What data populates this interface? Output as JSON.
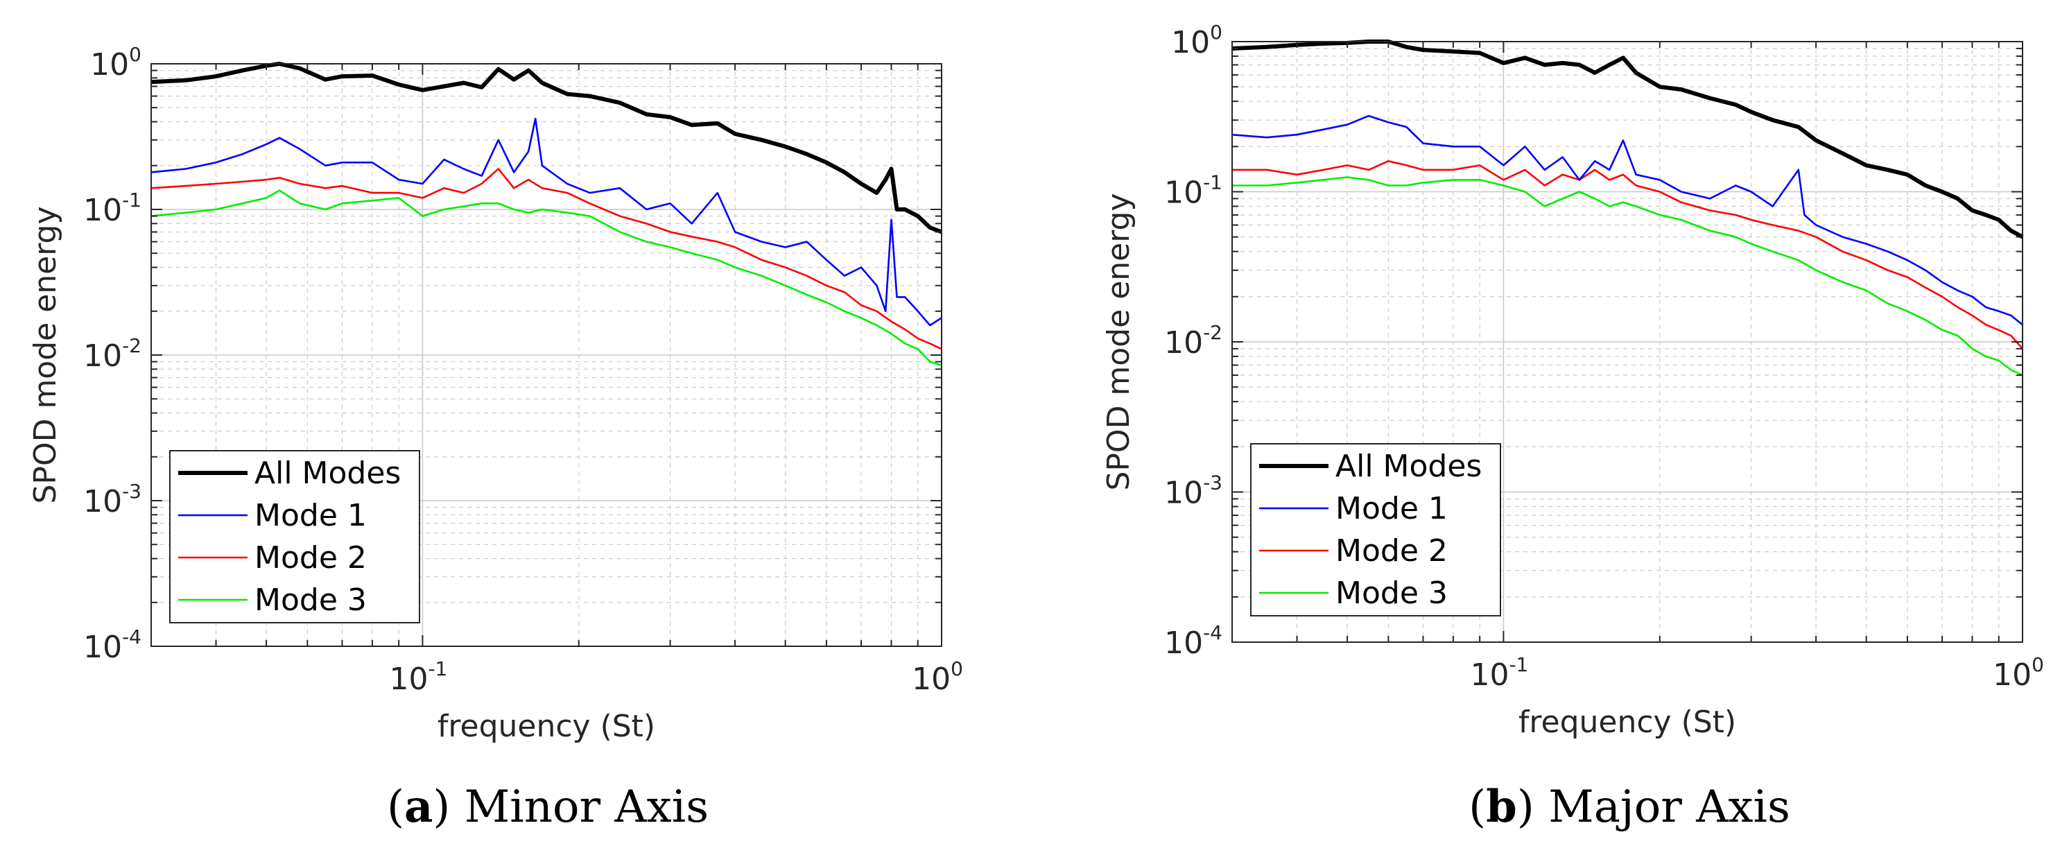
{
  "colors": {
    "all_modes": "#000000",
    "mode1": "#0000ff",
    "mode2": "#ff0000",
    "mode3": "#00ee00",
    "axis": "#262626",
    "grid": "#c8c8c8"
  },
  "chart_data": [
    {
      "type": "line",
      "caption_letter": "a",
      "caption_text": "Minor Axis",
      "xlabel": "frequency (St)",
      "ylabel": "SPOD mode energy",
      "xscale": "log",
      "yscale": "log",
      "xlim": [
        0.03,
        1.0
      ],
      "ylim": [
        0.0001,
        1.0
      ],
      "grid": true,
      "legend_position": "bottom-left",
      "x_ticks": [
        {
          "base": "10",
          "exp": "-1"
        },
        {
          "base": "10",
          "exp": "0"
        }
      ],
      "y_ticks": [
        {
          "base": "10",
          "exp": "0"
        },
        {
          "base": "10",
          "exp": "-1"
        },
        {
          "base": "10",
          "exp": "-2"
        },
        {
          "base": "10",
          "exp": "-3"
        },
        {
          "base": "10",
          "exp": "-4"
        }
      ],
      "series": [
        {
          "name": "All Modes",
          "color_key": "all_modes",
          "x": [
            0.03,
            0.035,
            0.04,
            0.045,
            0.05,
            0.053,
            0.058,
            0.065,
            0.07,
            0.08,
            0.09,
            0.1,
            0.11,
            0.12,
            0.13,
            0.14,
            0.15,
            0.16,
            0.17,
            0.19,
            0.21,
            0.24,
            0.27,
            0.3,
            0.33,
            0.37,
            0.4,
            0.45,
            0.5,
            0.55,
            0.6,
            0.65,
            0.7,
            0.75,
            0.78,
            0.8,
            0.82,
            0.85,
            0.9,
            0.95,
            1.0
          ],
          "values": [
            0.75,
            0.77,
            0.82,
            0.9,
            0.97,
            1.0,
            0.93,
            0.78,
            0.82,
            0.83,
            0.72,
            0.66,
            0.7,
            0.74,
            0.69,
            0.92,
            0.78,
            0.9,
            0.74,
            0.62,
            0.6,
            0.54,
            0.45,
            0.43,
            0.38,
            0.39,
            0.33,
            0.3,
            0.27,
            0.24,
            0.21,
            0.18,
            0.15,
            0.13,
            0.16,
            0.19,
            0.1,
            0.1,
            0.09,
            0.075,
            0.07
          ]
        },
        {
          "name": "Mode 1",
          "color_key": "mode1",
          "x": [
            0.03,
            0.035,
            0.04,
            0.045,
            0.05,
            0.053,
            0.058,
            0.065,
            0.07,
            0.08,
            0.09,
            0.1,
            0.11,
            0.12,
            0.13,
            0.14,
            0.15,
            0.16,
            0.165,
            0.17,
            0.19,
            0.21,
            0.24,
            0.27,
            0.3,
            0.33,
            0.37,
            0.4,
            0.45,
            0.5,
            0.55,
            0.6,
            0.65,
            0.7,
            0.75,
            0.78,
            0.8,
            0.82,
            0.85,
            0.9,
            0.95,
            1.0
          ],
          "values": [
            0.18,
            0.19,
            0.21,
            0.24,
            0.28,
            0.31,
            0.26,
            0.2,
            0.21,
            0.21,
            0.16,
            0.15,
            0.22,
            0.19,
            0.17,
            0.3,
            0.18,
            0.25,
            0.42,
            0.2,
            0.15,
            0.13,
            0.14,
            0.1,
            0.11,
            0.08,
            0.13,
            0.07,
            0.06,
            0.055,
            0.06,
            0.045,
            0.035,
            0.04,
            0.03,
            0.02,
            0.085,
            0.025,
            0.025,
            0.02,
            0.016,
            0.018
          ]
        },
        {
          "name": "Mode 2",
          "color_key": "mode2",
          "x": [
            0.03,
            0.035,
            0.04,
            0.045,
            0.05,
            0.053,
            0.058,
            0.065,
            0.07,
            0.08,
            0.09,
            0.1,
            0.11,
            0.12,
            0.13,
            0.14,
            0.15,
            0.16,
            0.17,
            0.19,
            0.21,
            0.24,
            0.27,
            0.3,
            0.33,
            0.37,
            0.4,
            0.45,
            0.5,
            0.55,
            0.6,
            0.65,
            0.7,
            0.75,
            0.8,
            0.85,
            0.9,
            0.95,
            1.0
          ],
          "values": [
            0.14,
            0.145,
            0.15,
            0.155,
            0.16,
            0.165,
            0.15,
            0.14,
            0.145,
            0.13,
            0.13,
            0.12,
            0.14,
            0.13,
            0.15,
            0.19,
            0.14,
            0.16,
            0.14,
            0.13,
            0.11,
            0.09,
            0.08,
            0.07,
            0.065,
            0.06,
            0.055,
            0.045,
            0.04,
            0.035,
            0.03,
            0.027,
            0.022,
            0.02,
            0.017,
            0.015,
            0.013,
            0.012,
            0.011
          ]
        },
        {
          "name": "Mode 3",
          "color_key": "mode3",
          "x": [
            0.03,
            0.035,
            0.04,
            0.045,
            0.05,
            0.053,
            0.058,
            0.065,
            0.07,
            0.08,
            0.09,
            0.1,
            0.11,
            0.12,
            0.13,
            0.14,
            0.15,
            0.16,
            0.17,
            0.19,
            0.21,
            0.24,
            0.27,
            0.3,
            0.33,
            0.37,
            0.4,
            0.45,
            0.5,
            0.55,
            0.6,
            0.65,
            0.7,
            0.75,
            0.8,
            0.85,
            0.9,
            0.95,
            1.0
          ],
          "values": [
            0.09,
            0.095,
            0.1,
            0.11,
            0.12,
            0.135,
            0.11,
            0.1,
            0.11,
            0.115,
            0.12,
            0.09,
            0.1,
            0.105,
            0.11,
            0.11,
            0.1,
            0.095,
            0.1,
            0.095,
            0.09,
            0.07,
            0.06,
            0.055,
            0.05,
            0.045,
            0.04,
            0.035,
            0.03,
            0.026,
            0.023,
            0.02,
            0.018,
            0.016,
            0.014,
            0.012,
            0.011,
            0.009,
            0.0085
          ]
        }
      ]
    },
    {
      "type": "line",
      "caption_letter": "b",
      "caption_text": "Major Axis",
      "xlabel": "frequency (St)",
      "ylabel": "SPOD mode energy",
      "xscale": "log",
      "yscale": "log",
      "xlim": [
        0.03,
        1.0
      ],
      "ylim": [
        0.0001,
        1.0
      ],
      "grid": true,
      "legend_position": "bottom-left",
      "x_ticks": [
        {
          "base": "10",
          "exp": "-1"
        },
        {
          "base": "10",
          "exp": "0"
        }
      ],
      "y_ticks": [
        {
          "base": "10",
          "exp": "0"
        },
        {
          "base": "10",
          "exp": "-1"
        },
        {
          "base": "10",
          "exp": "-2"
        },
        {
          "base": "10",
          "exp": "-3"
        },
        {
          "base": "10",
          "exp": "-4"
        }
      ],
      "series": [
        {
          "name": "All Modes",
          "color_key": "all_modes",
          "x": [
            0.03,
            0.035,
            0.04,
            0.045,
            0.05,
            0.055,
            0.06,
            0.065,
            0.07,
            0.08,
            0.09,
            0.1,
            0.11,
            0.12,
            0.13,
            0.14,
            0.15,
            0.16,
            0.17,
            0.18,
            0.2,
            0.22,
            0.25,
            0.28,
            0.3,
            0.33,
            0.37,
            0.4,
            0.45,
            0.5,
            0.55,
            0.6,
            0.65,
            0.7,
            0.75,
            0.8,
            0.85,
            0.9,
            0.95,
            1.0
          ],
          "values": [
            0.9,
            0.92,
            0.95,
            0.97,
            0.98,
            1.0,
            1.0,
            0.92,
            0.88,
            0.86,
            0.84,
            0.72,
            0.78,
            0.7,
            0.72,
            0.7,
            0.62,
            0.7,
            0.78,
            0.62,
            0.5,
            0.48,
            0.42,
            0.38,
            0.34,
            0.3,
            0.27,
            0.22,
            0.18,
            0.15,
            0.14,
            0.13,
            0.11,
            0.1,
            0.09,
            0.075,
            0.07,
            0.065,
            0.055,
            0.05
          ]
        },
        {
          "name": "Mode 1",
          "color_key": "mode1",
          "x": [
            0.03,
            0.035,
            0.04,
            0.045,
            0.05,
            0.055,
            0.06,
            0.065,
            0.07,
            0.08,
            0.09,
            0.1,
            0.11,
            0.12,
            0.13,
            0.14,
            0.15,
            0.16,
            0.17,
            0.18,
            0.2,
            0.22,
            0.25,
            0.28,
            0.3,
            0.33,
            0.37,
            0.38,
            0.4,
            0.45,
            0.5,
            0.55,
            0.6,
            0.65,
            0.7,
            0.75,
            0.8,
            0.85,
            0.9,
            0.95,
            1.0
          ],
          "values": [
            0.24,
            0.23,
            0.24,
            0.26,
            0.28,
            0.32,
            0.29,
            0.27,
            0.21,
            0.2,
            0.2,
            0.15,
            0.2,
            0.14,
            0.17,
            0.12,
            0.16,
            0.14,
            0.22,
            0.13,
            0.12,
            0.1,
            0.09,
            0.11,
            0.1,
            0.08,
            0.14,
            0.07,
            0.06,
            0.05,
            0.045,
            0.04,
            0.035,
            0.03,
            0.025,
            0.022,
            0.02,
            0.017,
            0.016,
            0.015,
            0.013
          ]
        },
        {
          "name": "Mode 2",
          "color_key": "mode2",
          "x": [
            0.03,
            0.035,
            0.04,
            0.045,
            0.05,
            0.055,
            0.06,
            0.065,
            0.07,
            0.08,
            0.09,
            0.1,
            0.11,
            0.12,
            0.13,
            0.14,
            0.15,
            0.16,
            0.17,
            0.18,
            0.2,
            0.22,
            0.25,
            0.28,
            0.3,
            0.33,
            0.37,
            0.4,
            0.45,
            0.5,
            0.55,
            0.6,
            0.65,
            0.7,
            0.75,
            0.8,
            0.85,
            0.9,
            0.95,
            1.0
          ],
          "values": [
            0.14,
            0.14,
            0.13,
            0.14,
            0.15,
            0.14,
            0.16,
            0.15,
            0.14,
            0.14,
            0.15,
            0.12,
            0.14,
            0.11,
            0.13,
            0.12,
            0.14,
            0.12,
            0.13,
            0.11,
            0.1,
            0.085,
            0.075,
            0.07,
            0.065,
            0.06,
            0.055,
            0.05,
            0.04,
            0.035,
            0.03,
            0.027,
            0.023,
            0.02,
            0.017,
            0.015,
            0.013,
            0.012,
            0.011,
            0.009
          ]
        },
        {
          "name": "Mode 3",
          "color_key": "mode3",
          "x": [
            0.03,
            0.035,
            0.04,
            0.045,
            0.05,
            0.055,
            0.06,
            0.065,
            0.07,
            0.08,
            0.09,
            0.1,
            0.11,
            0.12,
            0.13,
            0.14,
            0.15,
            0.16,
            0.17,
            0.18,
            0.2,
            0.22,
            0.25,
            0.28,
            0.3,
            0.33,
            0.37,
            0.4,
            0.45,
            0.5,
            0.55,
            0.6,
            0.65,
            0.7,
            0.75,
            0.8,
            0.85,
            0.9,
            0.95,
            1.0
          ],
          "values": [
            0.11,
            0.11,
            0.115,
            0.12,
            0.125,
            0.12,
            0.11,
            0.11,
            0.115,
            0.12,
            0.12,
            0.11,
            0.1,
            0.08,
            0.09,
            0.1,
            0.09,
            0.08,
            0.085,
            0.08,
            0.07,
            0.065,
            0.055,
            0.05,
            0.045,
            0.04,
            0.035,
            0.03,
            0.025,
            0.022,
            0.018,
            0.016,
            0.014,
            0.012,
            0.011,
            0.009,
            0.008,
            0.0075,
            0.0065,
            0.006
          ]
        }
      ]
    }
  ]
}
